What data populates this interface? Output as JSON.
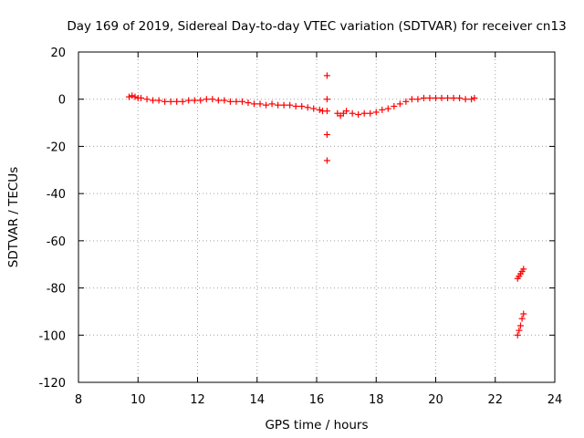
{
  "chart_data": {
    "type": "scatter",
    "title": "Day 169 of 2019, Sidereal Day-to-day VTEC variation (SDTVAR) for receiver cn13",
    "xlabel": "GPS time / hours",
    "ylabel": "SDTVAR / TECUs",
    "xlim": [
      8,
      24
    ],
    "ylim": [
      -120,
      20
    ],
    "xticks": [
      "8",
      "10",
      "12",
      "14",
      "16",
      "18",
      "20",
      "22",
      "24"
    ],
    "yticks": [
      "20",
      "0",
      "-20",
      "-40",
      "-60",
      "-80",
      "-100",
      "-120"
    ],
    "grid": true,
    "marker": "plus",
    "color": "#ff0000",
    "series": [
      {
        "x": [
          9.7,
          9.8,
          9.9,
          10.0,
          10.1,
          10.3,
          10.5,
          10.7,
          10.9,
          11.1,
          11.3,
          11.5,
          11.7,
          11.9,
          12.1,
          12.3,
          12.5,
          12.7,
          12.9,
          13.1,
          13.3,
          13.5,
          13.7,
          13.9,
          14.1,
          14.3,
          14.5,
          14.7,
          14.9,
          15.1,
          15.3,
          15.5,
          15.7,
          15.9,
          16.1,
          16.2,
          16.35,
          16.35,
          16.35,
          16.35,
          16.35,
          16.7,
          16.8,
          16.9,
          17.0,
          17.2,
          17.4,
          17.6,
          17.8,
          18.0,
          18.2,
          18.4,
          18.6,
          18.8,
          19.0,
          19.2,
          19.4,
          19.6,
          19.8,
          20.0,
          20.2,
          20.4,
          20.6,
          20.8,
          21.0,
          21.2,
          21.3,
          22.75,
          22.8,
          22.85,
          22.9,
          22.95,
          22.75,
          22.8,
          22.85,
          22.9,
          22.95
        ],
        "y": [
          1,
          1.5,
          1,
          0.5,
          0.5,
          0,
          -0.5,
          -0.5,
          -1,
          -1,
          -1,
          -1,
          -0.5,
          -0.5,
          -0.5,
          0,
          0,
          -0.5,
          -0.5,
          -1,
          -1,
          -1,
          -1.5,
          -2,
          -2,
          -2.5,
          -2,
          -2.5,
          -2.5,
          -2.5,
          -3,
          -3,
          -3.5,
          -4,
          -4.5,
          -5,
          10,
          0,
          -5,
          -15,
          -26,
          -6,
          -7,
          -6,
          -5,
          -6,
          -6.5,
          -6,
          -6,
          -5.5,
          -4.5,
          -4,
          -3,
          -2,
          -1,
          0,
          0,
          0.5,
          0.5,
          0.5,
          0.5,
          0.5,
          0.5,
          0.5,
          0,
          0,
          0.5,
          -76,
          -75,
          -74,
          -73,
          -72,
          -100,
          -98,
          -96,
          -93,
          -91
        ]
      }
    ]
  }
}
